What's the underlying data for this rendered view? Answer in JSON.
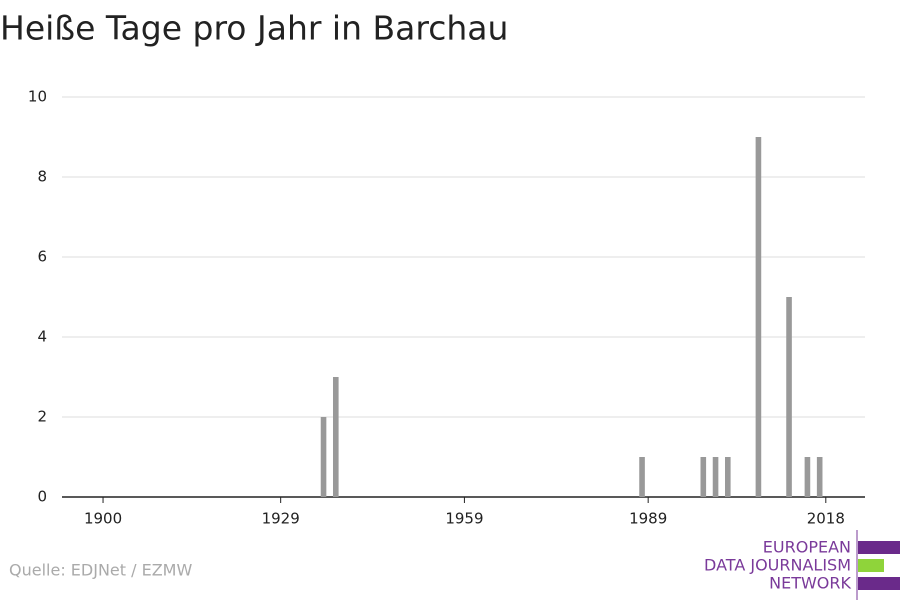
{
  "chart_data": {
    "type": "bar",
    "title": "Heiße Tage pro Jahr in Barchau",
    "x": [
      1936,
      1938,
      1988,
      1998,
      2000,
      2002,
      2007,
      2012,
      2015,
      2017
    ],
    "values": [
      2,
      3,
      1,
      1,
      1,
      1,
      9,
      5,
      1,
      1
    ],
    "color": "#999999",
    "xlim": [
      1893.3,
      2024.4
    ],
    "xticks": [
      1900,
      1929,
      1959,
      1989,
      2018
    ],
    "ylim": [
      0,
      10
    ],
    "yticks": [
      0,
      2,
      4,
      6,
      8,
      10
    ],
    "grid": true,
    "source": "Quelle: EDJNet / EZMW",
    "logo": [
      "EUROPEAN",
      "DATA JOURNALISM",
      "NETWORK"
    ]
  }
}
